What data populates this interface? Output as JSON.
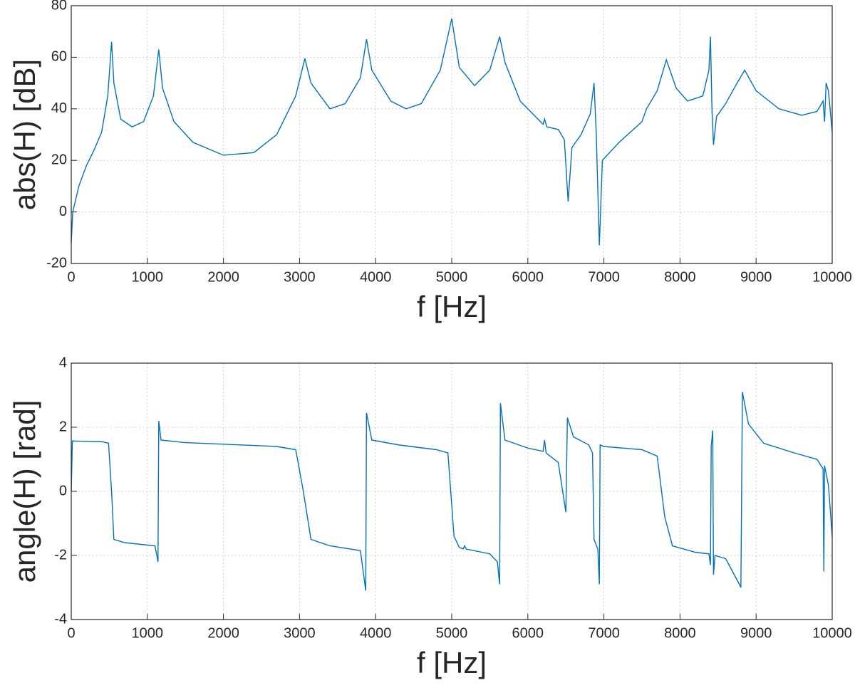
{
  "chart_data": [
    {
      "type": "line",
      "xlabel": "f [Hz]",
      "ylabel": "abs(H) [dB]",
      "color": "#0072bd",
      "grid": true,
      "xlim": [
        0,
        10000
      ],
      "ylim": [
        -20,
        80
      ],
      "xticks": [
        0,
        1000,
        2000,
        3000,
        4000,
        5000,
        6000,
        7000,
        8000,
        9000,
        10000
      ],
      "yticks": [
        -20,
        0,
        20,
        40,
        60,
        80
      ],
      "x": [
        0,
        20,
        100,
        200,
        300,
        400,
        480,
        530,
        560,
        650,
        800,
        950,
        1080,
        1150,
        1200,
        1350,
        1600,
        2000,
        2400,
        2700,
        2950,
        3070,
        3150,
        3400,
        3600,
        3800,
        3880,
        3950,
        4200,
        4400,
        4600,
        4850,
        5000,
        5100,
        5300,
        5500,
        5630,
        5700,
        5900,
        6200,
        6220,
        6250,
        6400,
        6480,
        6530,
        6580,
        6700,
        6820,
        6870,
        6900,
        6940,
        6980,
        7200,
        7500,
        7560,
        7700,
        7820,
        7950,
        8100,
        8300,
        8380,
        8400,
        8420,
        8440,
        8480,
        8600,
        8750,
        8850,
        9000,
        9300,
        9600,
        9800,
        9880,
        9900,
        9920,
        9950,
        10000
      ],
      "values": [
        -12,
        0,
        10,
        18,
        24,
        31,
        45,
        66,
        50,
        36,
        33,
        35,
        45,
        63,
        48,
        35,
        27,
        22,
        23,
        30,
        45,
        59.5,
        50,
        40,
        42,
        52,
        67,
        55,
        43,
        40,
        42,
        55,
        75,
        56,
        49,
        55,
        68,
        58,
        43,
        34,
        36,
        33,
        32,
        28,
        4,
        25,
        30,
        38,
        50,
        30,
        -13,
        20,
        27,
        35,
        40,
        47,
        59,
        48,
        43,
        45,
        55,
        68,
        40,
        26,
        37,
        42,
        50,
        55,
        47,
        40,
        37.5,
        39,
        43,
        35,
        50,
        47,
        31
      ]
    },
    {
      "type": "line",
      "xlabel": "f [Hz]",
      "ylabel": "angle(H) [rad]",
      "color": "#0072bd",
      "grid": true,
      "xlim": [
        0,
        10000
      ],
      "ylim": [
        -4,
        4
      ],
      "xticks": [
        0,
        1000,
        2000,
        3000,
        4000,
        5000,
        6000,
        7000,
        8000,
        9000,
        10000
      ],
      "yticks": [
        -4,
        -2,
        0,
        2,
        4
      ],
      "x": [
        0,
        15,
        400,
        490,
        530,
        560,
        700,
        1100,
        1140,
        1150,
        1180,
        1500,
        2000,
        2700,
        2950,
        3050,
        3150,
        3400,
        3800,
        3870,
        3880,
        3950,
        4300,
        4800,
        4950,
        5030,
        5100,
        5150,
        5170,
        5190,
        5500,
        5600,
        5630,
        5640,
        5700,
        6000,
        6200,
        6220,
        6240,
        6400,
        6500,
        6520,
        6600,
        6800,
        6850,
        6870,
        6920,
        6940,
        6950,
        7000,
        7500,
        7700,
        7800,
        7900,
        8200,
        8380,
        8400,
        8410,
        8430,
        8440,
        8460,
        8600,
        8780,
        8800,
        8820,
        8900,
        9100,
        9500,
        9800,
        9880,
        9890,
        9900,
        9950,
        10000
      ],
      "values": [
        0,
        1.57,
        1.55,
        1.5,
        0,
        -1.5,
        -1.6,
        -1.7,
        -2.2,
        2.2,
        1.6,
        1.52,
        1.47,
        1.4,
        1.3,
        0,
        -1.5,
        -1.7,
        -1.85,
        -3.1,
        2.45,
        1.6,
        1.45,
        1.3,
        1.2,
        -1.4,
        -1.75,
        -1.8,
        -1.7,
        -1.8,
        -1.95,
        -2.2,
        -2.9,
        2.75,
        1.6,
        1.35,
        1.25,
        1.6,
        1.2,
        0.9,
        -0.65,
        2.3,
        1.7,
        1.45,
        1.2,
        -1.5,
        -1.8,
        -2.9,
        1.45,
        1.4,
        1.3,
        1.1,
        -0.8,
        -1.7,
        -1.9,
        -1.95,
        -2.3,
        1.4,
        1.9,
        -2.6,
        -2.0,
        -2.1,
        -2.9,
        -3.0,
        3.1,
        2.1,
        1.5,
        1.2,
        1.0,
        0.7,
        -2.5,
        0.8,
        0.2,
        -1.4
      ]
    }
  ]
}
